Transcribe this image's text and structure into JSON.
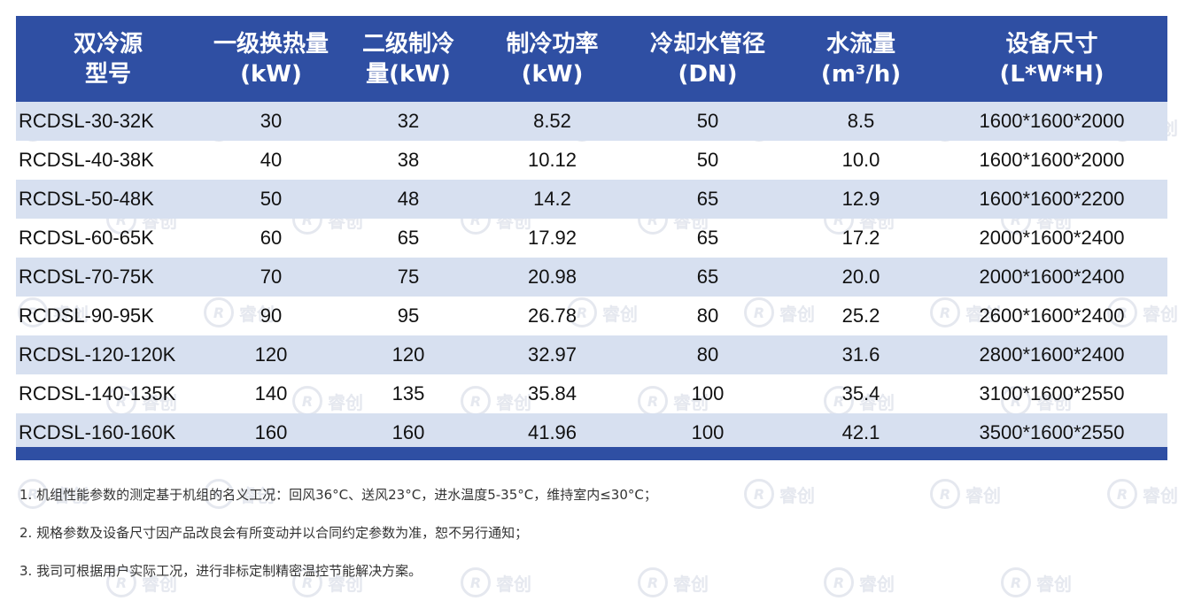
{
  "headers": [
    [
      "双冷源",
      "型号"
    ],
    [
      "一级换热量",
      "(kW)"
    ],
    [
      "二级制冷",
      "量(kW)"
    ],
    [
      "制冷功率",
      "(kW)"
    ],
    [
      "冷却水管径",
      "(DN)"
    ],
    [
      "水流量",
      "(m³/h)"
    ],
    [
      "设备尺寸",
      "(L*W*H)"
    ]
  ],
  "rows": [
    [
      "RCDSL-30-32K",
      "30",
      "32",
      "8.52",
      "50",
      "8.5",
      "1600*1600*2000"
    ],
    [
      "RCDSL-40-38K",
      "40",
      "38",
      "10.12",
      "50",
      "10.0",
      "1600*1600*2000"
    ],
    [
      "RCDSL-50-48K",
      "50",
      "48",
      "14.2",
      "65",
      "12.9",
      "1600*1600*2200"
    ],
    [
      "RCDSL-60-65K",
      "60",
      "65",
      "17.92",
      "65",
      "17.2",
      "2000*1600*2400"
    ],
    [
      "RCDSL-70-75K",
      "70",
      "75",
      "20.98",
      "65",
      "20.0",
      "2000*1600*2400"
    ],
    [
      "RCDSL-90-95K",
      "90",
      "95",
      "26.78",
      "80",
      "25.2",
      "2600*1600*2400"
    ],
    [
      "RCDSL-120-120K",
      "120",
      "120",
      "32.97",
      "80",
      "31.6",
      "2800*1600*2400"
    ],
    [
      "RCDSL-140-135K",
      "140",
      "135",
      "35.84",
      "100",
      "35.4",
      "3100*1600*2550"
    ],
    [
      "RCDSL-160-160K",
      "160",
      "160",
      "41.96",
      "100",
      "42.1",
      "3500*1600*2550"
    ]
  ],
  "notes": [
    "1. 机组性能参数的测定基于机组的名义工况：回风36°C、送风23°C，进水温度5-35°C，维持室内≤30°C；",
    "2. 规格参数及设备尺寸因产品改良会有所变动并以合同约定参数为准，恕不另行通知；",
    "3. 我司可根据用户实际工况，进行非标定制精密温控节能解决方案。"
  ],
  "watermark": {
    "mark": "R",
    "text": "睿创"
  },
  "colors": {
    "header_bg": "#2f4fa3",
    "row_shade": "#d7e0f0",
    "watermark": "#e3e6ee"
  }
}
